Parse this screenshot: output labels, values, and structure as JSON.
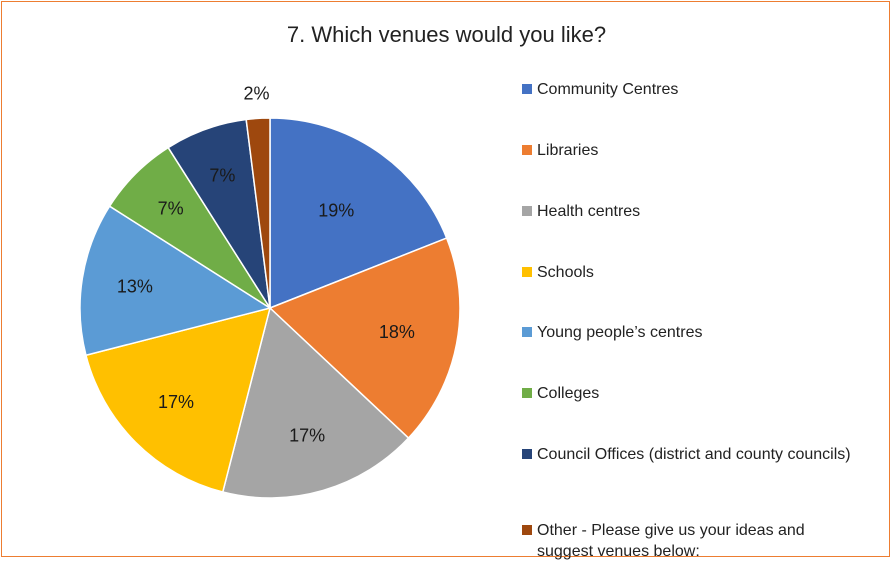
{
  "chart_data": {
    "type": "pie",
    "title": "7. Which venues would you like?",
    "categories": [
      "Community Centres",
      "Libraries",
      "Health centres",
      "Schools",
      "Young people’s centres",
      "Colleges",
      "Council Offices (district and county councils)",
      "Other - Please give us your ideas and suggest venues below:"
    ],
    "values": [
      19,
      18,
      17,
      17,
      13,
      7,
      7,
      2
    ],
    "labels": [
      "19%",
      "18%",
      "17%",
      "17%",
      "13%",
      "7%",
      "7%",
      "2%"
    ],
    "colors": [
      "#4472C4",
      "#ED7D31",
      "#A5A5A5",
      "#FFC000",
      "#5B9BD5",
      "#70AD47",
      "#264478",
      "#9E480E"
    ],
    "legend_position": "right"
  }
}
